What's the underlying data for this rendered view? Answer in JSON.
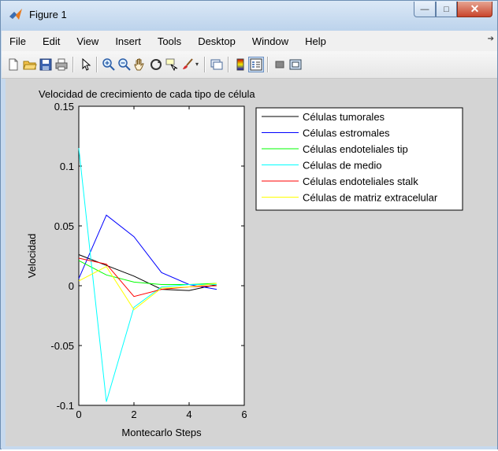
{
  "window": {
    "title": "Figure 1",
    "controls": {
      "minimize": "—",
      "maximize": "□",
      "close": "✕"
    }
  },
  "menu": {
    "items": [
      "File",
      "Edit",
      "View",
      "Insert",
      "Tools",
      "Desktop",
      "Window",
      "Help"
    ]
  },
  "toolbar": {
    "buttons": [
      "new-figure-icon",
      "open-file-icon",
      "save-icon",
      "print-icon",
      "edit-plot-arrow-icon",
      "zoom-in-icon",
      "zoom-out-icon",
      "pan-hand-icon",
      "rotate-3d-icon",
      "data-cursor-icon",
      "brush-icon",
      "link-plot-icon",
      "colorbar-icon",
      "legend-icon",
      "hide-plot-tools-icon",
      "show-plot-tools-icon"
    ]
  },
  "chart_data": {
    "type": "line",
    "title": "Velocidad de crecimiento de cada tipo de célula",
    "xlabel": "Montecarlo Steps",
    "ylabel": "Velocidad",
    "xlim": [
      0,
      6
    ],
    "ylim": [
      -0.1,
      0.15
    ],
    "xticks": [
      "0",
      "2",
      "4",
      "6"
    ],
    "yticks": [
      "-0.1",
      "-0.05",
      "0",
      "0.05",
      "0.1",
      "0.15"
    ],
    "grid": false,
    "legend_position": "top-right",
    "series": [
      {
        "name": "Células tumorales",
        "color": "#000000",
        "x": [
          0,
          1,
          2,
          3,
          4,
          5
        ],
        "y": [
          0.026,
          0.017,
          0.008,
          -0.003,
          -0.004,
          0.001
        ]
      },
      {
        "name": "Células estromales",
        "color": "#0000ff",
        "x": [
          0,
          1,
          2,
          3,
          4,
          5
        ],
        "y": [
          0.006,
          0.059,
          0.041,
          0.011,
          0.001,
          -0.003
        ]
      },
      {
        "name": "Células endoteliales tip",
        "color": "#00ff00",
        "x": [
          0,
          1,
          2,
          3,
          4,
          5
        ],
        "y": [
          0.021,
          0.009,
          0.003,
          0.001,
          0.001,
          0.002
        ]
      },
      {
        "name": "Células de medio",
        "color": "#00ffff",
        "x": [
          0,
          1,
          2,
          3,
          4,
          5
        ],
        "y": [
          0.115,
          -0.097,
          -0.018,
          -0.001,
          0.001,
          0.001
        ]
      },
      {
        "name": "Células endoteliales stalk",
        "color": "#ff0000",
        "x": [
          0,
          1,
          2,
          3,
          4,
          5
        ],
        "y": [
          0.023,
          0.018,
          -0.009,
          -0.003,
          -0.001,
          0.0
        ]
      },
      {
        "name": "Células de matriz extracelular",
        "color": "#ffff00",
        "x": [
          0,
          1,
          2,
          3,
          4,
          5
        ],
        "y": [
          0.004,
          0.016,
          -0.02,
          -0.002,
          -0.001,
          0.002
        ]
      }
    ]
  }
}
